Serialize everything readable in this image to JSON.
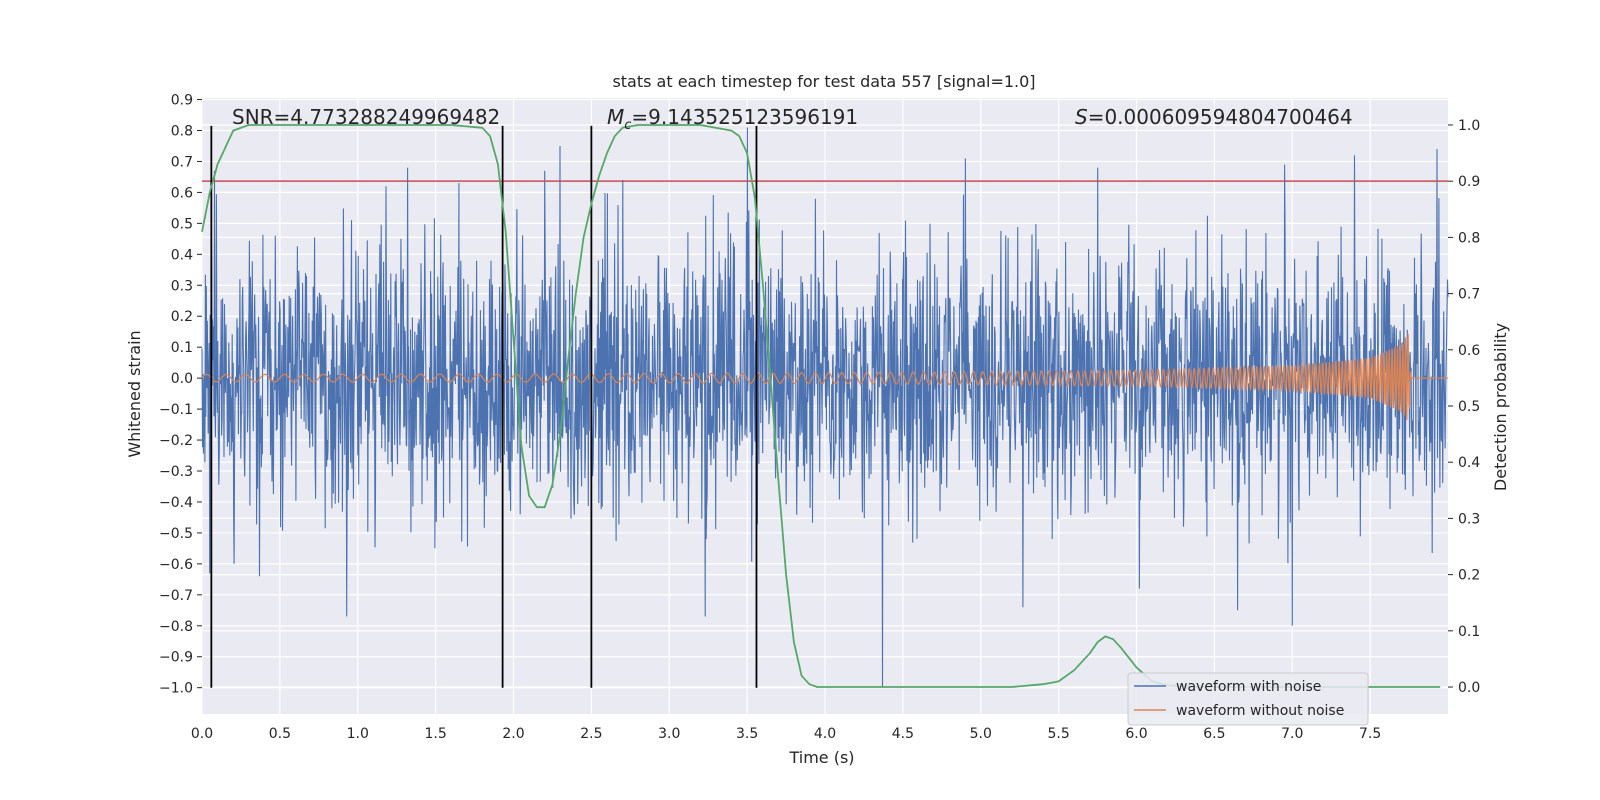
{
  "chart_data": {
    "type": "line",
    "title": "stats at each timestep for test data 557 [signal=1.0]",
    "xlabel": "Time (s)",
    "ylabel": "Whitened strain",
    "y2label": "Detection probability",
    "xlim": [
      0.0,
      8.0
    ],
    "ylim": [
      -1.085,
      0.905
    ],
    "y2lim": [
      -0.048,
      1.048
    ],
    "x_ticks": [
      0.0,
      0.5,
      1.0,
      1.5,
      2.0,
      2.5,
      3.0,
      3.5,
      4.0,
      4.5,
      5.0,
      5.5,
      6.0,
      6.5,
      7.0,
      7.5
    ],
    "x_tick_labels": [
      "0.0",
      "0.5",
      "1.0",
      "1.5",
      "2.0",
      "2.5",
      "3.0",
      "3.5",
      "4.0",
      "4.5",
      "5.0",
      "5.5",
      "6.0",
      "6.5",
      "7.0",
      "7.5"
    ],
    "y_ticks": [
      0.9,
      0.8,
      0.7,
      0.6,
      0.5,
      0.4,
      0.3,
      0.2,
      0.1,
      0.0,
      -0.1,
      -0.2,
      -0.3,
      -0.4,
      -0.5,
      -0.6,
      -0.7,
      -0.8,
      -0.9,
      -1.0
    ],
    "y_tick_labels": [
      "0.9",
      "0.8",
      "0.7",
      "0.6",
      "0.5",
      "0.4",
      "0.3",
      "0.2",
      "0.1",
      "0.0",
      "−0.1",
      "−0.2",
      "−0.3",
      "−0.4",
      "−0.5",
      "−0.6",
      "−0.7",
      "−0.8",
      "−0.9",
      "−1.0"
    ],
    "y2_ticks": [
      1.0,
      0.9,
      0.8,
      0.7,
      0.6,
      0.5,
      0.4,
      0.3,
      0.2,
      0.1,
      0.0
    ],
    "y2_tick_labels": [
      "1.0",
      "0.9",
      "0.8",
      "0.7",
      "0.6",
      "0.5",
      "0.4",
      "0.3",
      "0.2",
      "0.1",
      "0.0"
    ],
    "grid": true,
    "legend_position": "bottom-right",
    "annotations": {
      "snr": "SNR=4.773288249969482",
      "mc_symbol": "M",
      "mc_sub": "c",
      "mc_value": "=9.143525123596191",
      "s_symbol": "S",
      "s_value": "=0.000609594804700464"
    },
    "threshold": {
      "value": 0.9,
      "axis": "y2",
      "color": "#c44e52"
    },
    "vertical_lines": {
      "x": [
        0.06,
        1.93,
        2.5,
        3.56
      ],
      "y_from": -1.0,
      "y_to": 0.815,
      "color": "#000000"
    },
    "series": [
      {
        "name": "waveform with noise",
        "color": "#4c72b0",
        "description": "whitened noisy strain, amplitude range about -1.0 to 0.82",
        "noise_sigma": 0.21,
        "peaks": [
          {
            "x": 0.05,
            "y": -0.63
          },
          {
            "x": 0.08,
            "y": 0.67
          },
          {
            "x": 0.37,
            "y": -0.64
          },
          {
            "x": 0.47,
            "y": 0.46
          },
          {
            "x": 0.93,
            "y": -0.77
          },
          {
            "x": 1.18,
            "y": 0.62
          },
          {
            "x": 1.32,
            "y": 0.68
          },
          {
            "x": 1.65,
            "y": 0.63
          },
          {
            "x": 2.2,
            "y": 0.67
          },
          {
            "x": 2.3,
            "y": 0.75
          },
          {
            "x": 2.7,
            "y": 0.64
          },
          {
            "x": 3.23,
            "y": -0.77
          },
          {
            "x": 3.5,
            "y": 0.81
          },
          {
            "x": 4.37,
            "y": -1.0
          },
          {
            "x": 4.9,
            "y": 0.71
          },
          {
            "x": 5.27,
            "y": -0.74
          },
          {
            "x": 5.75,
            "y": 0.68
          },
          {
            "x": 6.02,
            "y": -0.68
          },
          {
            "x": 6.65,
            "y": -0.75
          },
          {
            "x": 6.95,
            "y": 0.69
          },
          {
            "x": 7.0,
            "y": -0.8
          },
          {
            "x": 7.4,
            "y": 0.72
          },
          {
            "x": 7.93,
            "y": 0.74
          }
        ]
      },
      {
        "name": "waveform without noise",
        "color": "#dd8452",
        "description": "clean chirp signal growing in amplitude and frequency, merger near t=7.75 s",
        "x_start": 0.0,
        "x_merger": 7.75,
        "x_end": 8.0,
        "amplitude_envelope": [
          [
            0.0,
            0.012
          ],
          [
            2.0,
            0.013
          ],
          [
            4.0,
            0.017
          ],
          [
            6.0,
            0.026
          ],
          [
            7.0,
            0.04
          ],
          [
            7.5,
            0.065
          ],
          [
            7.7,
            0.11
          ],
          [
            7.75,
            0.15
          ]
        ],
        "freq_start_hz": 8,
        "freq_merger_hz": 60
      },
      {
        "name": "detection probability",
        "color": "#55a868",
        "axis": "y2",
        "x": [
          0.0,
          0.05,
          0.1,
          0.2,
          0.3,
          0.4,
          0.6,
          0.8,
          1.0,
          1.2,
          1.4,
          1.6,
          1.8,
          1.85,
          1.9,
          1.95,
          2.0,
          2.05,
          2.1,
          2.15,
          2.2,
          2.25,
          2.3,
          2.35,
          2.4,
          2.45,
          2.5,
          2.55,
          2.6,
          2.65,
          2.7,
          2.8,
          3.0,
          3.2,
          3.4,
          3.45,
          3.5,
          3.55,
          3.6,
          3.65,
          3.7,
          3.75,
          3.8,
          3.85,
          3.9,
          3.95,
          4.2,
          4.5,
          5.0,
          5.2,
          5.4,
          5.5,
          5.6,
          5.7,
          5.75,
          5.8,
          5.85,
          5.9,
          6.0,
          6.1,
          6.2,
          6.4,
          7.0,
          7.5,
          7.95
        ],
        "values": [
          0.81,
          0.88,
          0.93,
          0.99,
          1.0,
          1.0,
          1.0,
          1.0,
          1.0,
          1.0,
          1.0,
          1.0,
          0.995,
          0.98,
          0.93,
          0.81,
          0.62,
          0.43,
          0.34,
          0.32,
          0.32,
          0.36,
          0.45,
          0.58,
          0.7,
          0.8,
          0.86,
          0.91,
          0.95,
          0.98,
          0.995,
          1.0,
          1.0,
          1.0,
          0.99,
          0.98,
          0.95,
          0.87,
          0.72,
          0.55,
          0.37,
          0.2,
          0.08,
          0.02,
          0.005,
          0.0,
          0.0,
          0.0,
          0.0,
          0.0,
          0.005,
          0.01,
          0.03,
          0.06,
          0.08,
          0.09,
          0.085,
          0.07,
          0.035,
          0.01,
          0.003,
          0.0,
          0.0,
          0.0,
          0.0
        ]
      }
    ]
  }
}
